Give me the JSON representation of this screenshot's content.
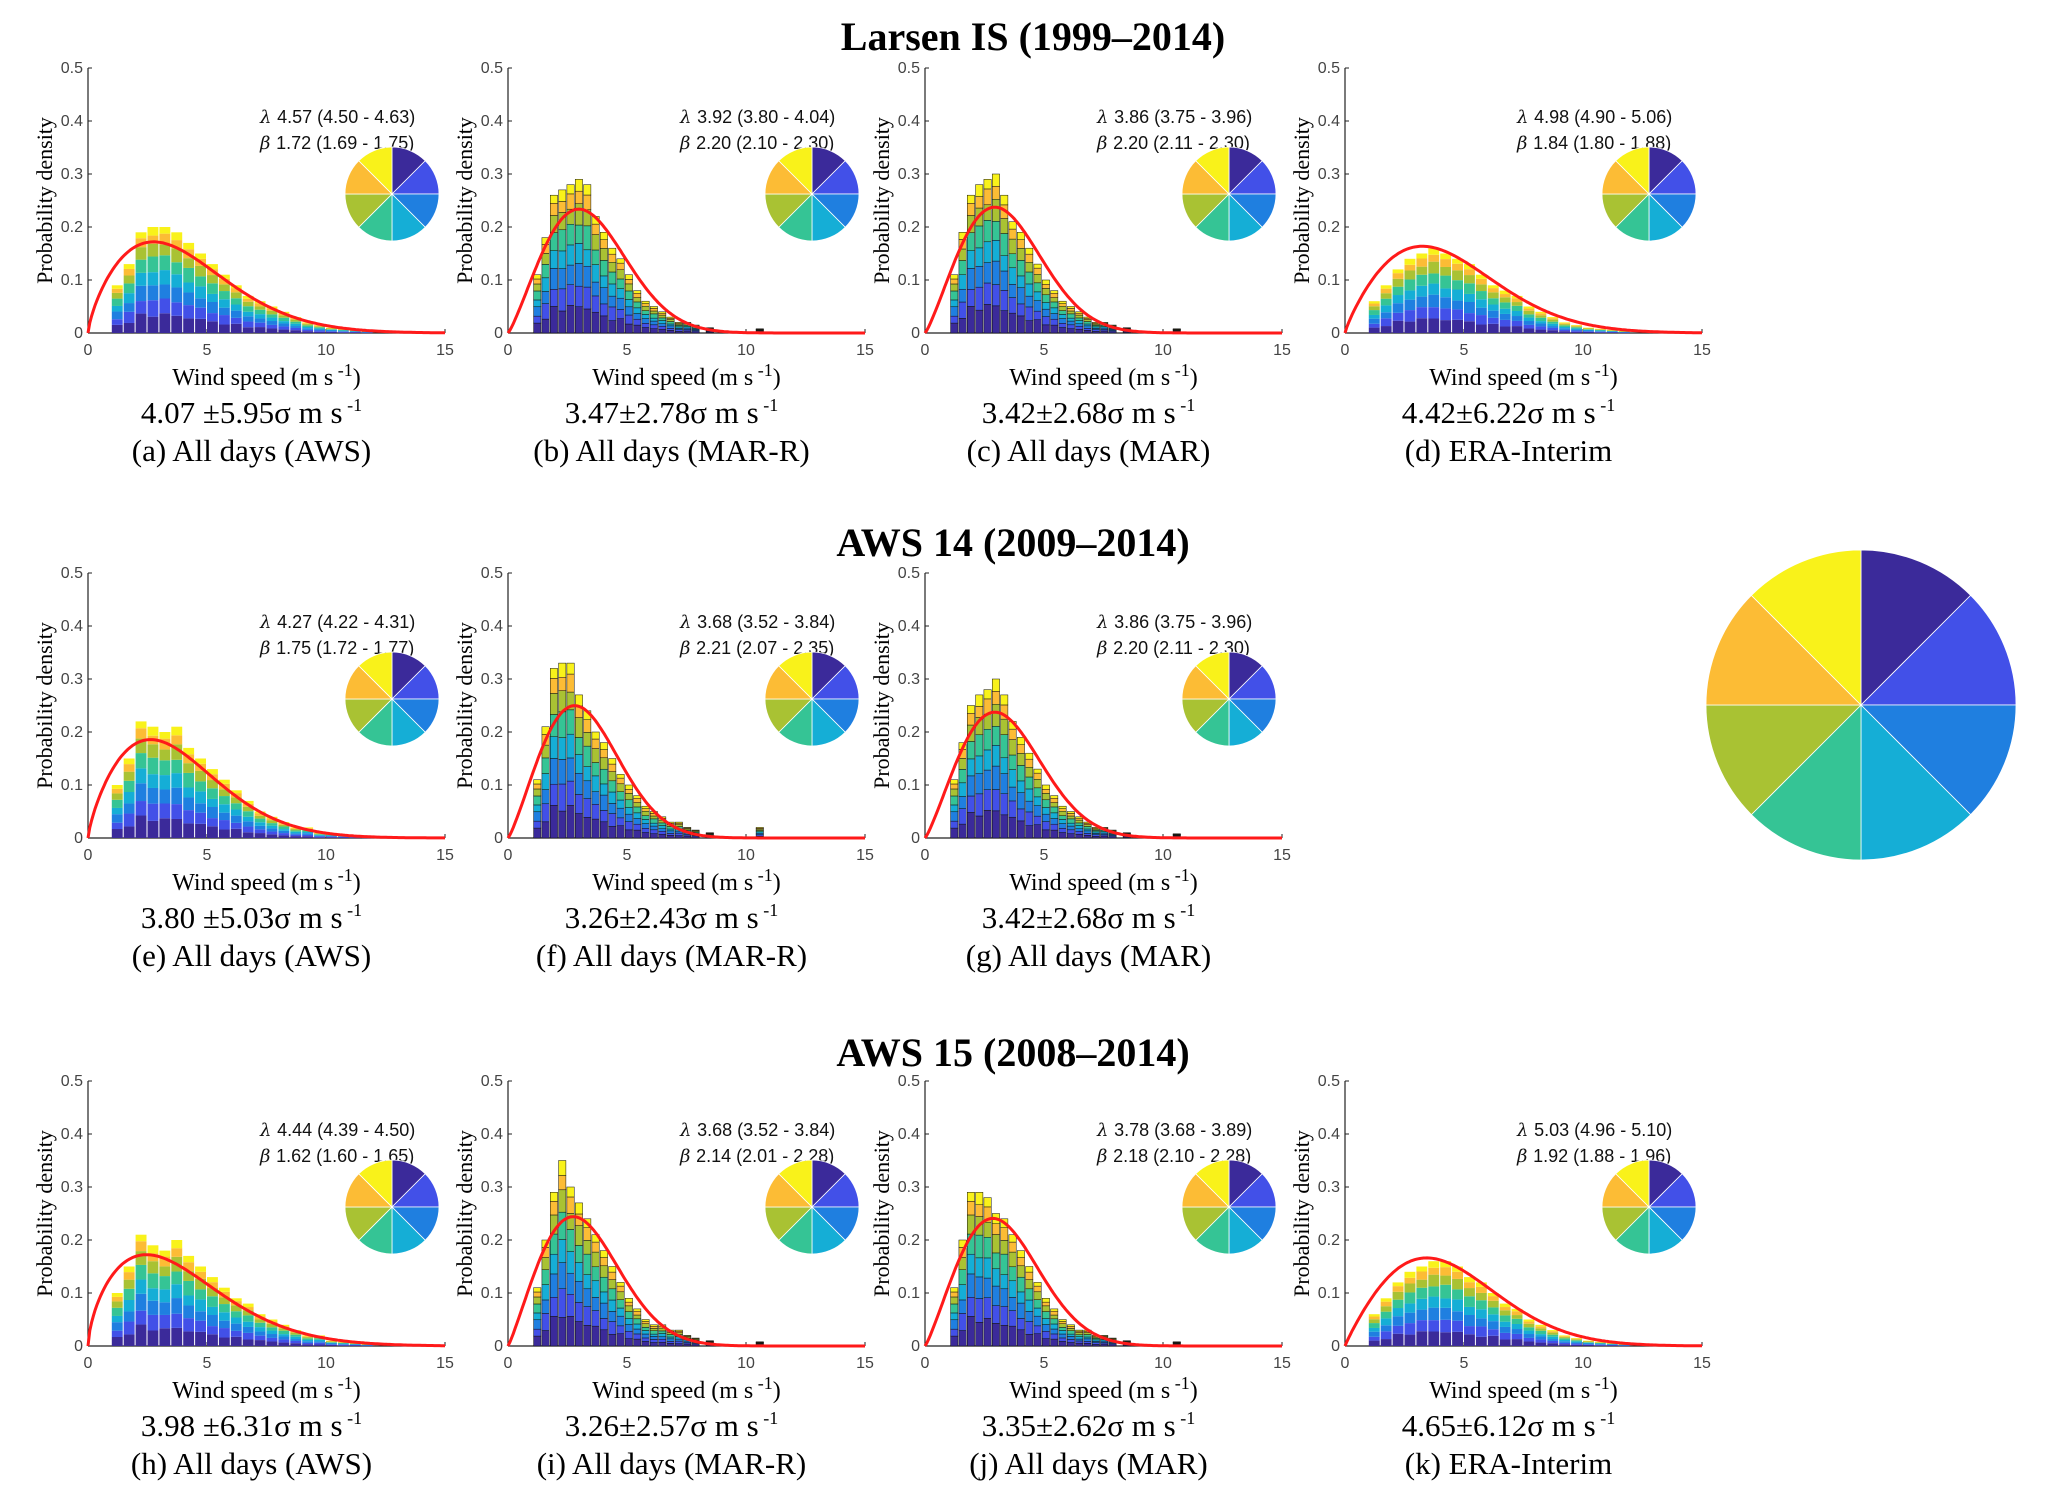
{
  "figure": {
    "section_titles": [
      "Larsen IS (1999–2014)",
      "AWS 14 (2009–2014)",
      "AWS 15 (2008–2014)"
    ],
    "y_label": "Probability density",
    "x_label": "Wind speed (m s",
    "x_label_sup": "-1",
    "x_label_close": ")",
    "unit_text": "m s",
    "unit_sup": "-1",
    "lambda_symbol": "λ",
    "beta_symbol": "β",
    "sigma_symbol": "σ",
    "colors": {
      "fit_line": "#ff1a1a",
      "direction_palette": [
        "#3b2a9a",
        "#4250e8",
        "#1f7fe0",
        "#15aed6",
        "#35c495",
        "#a9c233",
        "#fcbc35",
        "#f9f21a"
      ]
    }
  },
  "chart_data": [
    {
      "id": "a",
      "type": "bar",
      "title": "(a) All days (AWS)",
      "stat_mean": "4.07",
      "stat_pm": " ±",
      "stat_sd": "5.95",
      "lambda": "4.57 (4.50 - 4.63)",
      "beta": "1.72 (1.69 - 1.75)",
      "xlim": [
        0,
        15
      ],
      "ylim": [
        0,
        0.5
      ],
      "x_ticks": [
        "0",
        "5",
        "10",
        "15"
      ],
      "y_ticks": [
        "0",
        "0.1",
        "0.2",
        "0.3",
        "0.4",
        "0.5"
      ],
      "bin_width": 0.5,
      "bin_centers": [
        1.25,
        1.75,
        2.25,
        2.75,
        3.25,
        3.75,
        4.25,
        4.75,
        5.25,
        5.75,
        6.25,
        6.75,
        7.25,
        7.75,
        8.25,
        8.75,
        9.25,
        9.75,
        10.25,
        10.75,
        11.25,
        11.75
      ],
      "values": [
        0.09,
        0.13,
        0.19,
        0.2,
        0.2,
        0.19,
        0.17,
        0.15,
        0.13,
        0.11,
        0.09,
        0.07,
        0.06,
        0.05,
        0.04,
        0.03,
        0.02,
        0.015,
        0.01,
        0.008,
        0.006,
        0.004
      ],
      "pie": [
        0.125,
        0.125,
        0.125,
        0.125,
        0.125,
        0.125,
        0.125,
        0.125
      ]
    },
    {
      "id": "b",
      "type": "bar",
      "title": "(b) All days (MAR-R)",
      "stat_mean": "3.47",
      "stat_pm": "±",
      "stat_sd": "2.78",
      "lambda": "3.92 (3.80 - 4.04)",
      "beta": "2.20 (2.10 - 2.30)",
      "xlim": [
        0,
        15
      ],
      "ylim": [
        0,
        0.5
      ],
      "x_ticks": [
        "0",
        "5",
        "10",
        "15"
      ],
      "y_ticks": [
        "0",
        "0.1",
        "0.2",
        "0.3",
        "0.4",
        "0.5"
      ],
      "bin_width": 0.35,
      "bin_centers": [
        1.25,
        1.6,
        1.95,
        2.3,
        2.65,
        3.0,
        3.35,
        3.7,
        4.05,
        4.4,
        4.75,
        5.1,
        5.45,
        5.8,
        6.15,
        6.5,
        6.85,
        7.2,
        7.55,
        7.9,
        8.5,
        10.6
      ],
      "values": [
        0.11,
        0.18,
        0.26,
        0.27,
        0.28,
        0.29,
        0.28,
        0.22,
        0.19,
        0.16,
        0.14,
        0.11,
        0.08,
        0.06,
        0.05,
        0.04,
        0.03,
        0.02,
        0.02,
        0.015,
        0.01,
        0.008
      ],
      "pie": [
        0.125,
        0.125,
        0.125,
        0.125,
        0.125,
        0.125,
        0.125,
        0.125
      ]
    },
    {
      "id": "c",
      "type": "bar",
      "title": "(c) All days (MAR)",
      "stat_mean": "3.42",
      "stat_pm": "±",
      "stat_sd": "2.68",
      "lambda": "3.86 (3.75 - 3.96)",
      "beta": "2.20 (2.11 - 2.30)",
      "xlim": [
        0,
        15
      ],
      "ylim": [
        0,
        0.5
      ],
      "x_ticks": [
        "0",
        "5",
        "10",
        "15"
      ],
      "y_ticks": [
        "0",
        "0.1",
        "0.2",
        "0.3",
        "0.4",
        "0.5"
      ],
      "bin_width": 0.35,
      "bin_centers": [
        1.25,
        1.6,
        1.95,
        2.3,
        2.65,
        3.0,
        3.35,
        3.7,
        4.05,
        4.4,
        4.75,
        5.1,
        5.45,
        5.8,
        6.15,
        6.5,
        6.85,
        7.2,
        7.55,
        7.9,
        8.5,
        10.6
      ],
      "values": [
        0.11,
        0.19,
        0.26,
        0.28,
        0.29,
        0.3,
        0.26,
        0.21,
        0.19,
        0.16,
        0.13,
        0.1,
        0.08,
        0.06,
        0.05,
        0.04,
        0.03,
        0.02,
        0.02,
        0.015,
        0.01,
        0.008
      ],
      "pie": [
        0.125,
        0.125,
        0.125,
        0.125,
        0.125,
        0.125,
        0.125,
        0.125
      ]
    },
    {
      "id": "d",
      "type": "bar",
      "title": "(d) ERA-Interim",
      "stat_mean": "4.42",
      "stat_pm": "±",
      "stat_sd": "6.22",
      "lambda": "4.98 (4.90 - 5.06)",
      "beta": "1.84 (1.80 - 1.88)",
      "xlim": [
        0,
        15
      ],
      "ylim": [
        0,
        0.5
      ],
      "x_ticks": [
        "0",
        "5",
        "10",
        "15"
      ],
      "y_ticks": [
        "0",
        "0.1",
        "0.2",
        "0.3",
        "0.4",
        "0.5"
      ],
      "bin_width": 0.5,
      "bin_centers": [
        1.25,
        1.75,
        2.25,
        2.75,
        3.25,
        3.75,
        4.25,
        4.75,
        5.25,
        5.75,
        6.25,
        6.75,
        7.25,
        7.75,
        8.25,
        8.75,
        9.25,
        9.75,
        10.25,
        10.75,
        11.25,
        11.75
      ],
      "values": [
        0.06,
        0.09,
        0.12,
        0.14,
        0.15,
        0.16,
        0.15,
        0.14,
        0.13,
        0.11,
        0.09,
        0.08,
        0.07,
        0.05,
        0.04,
        0.03,
        0.02,
        0.015,
        0.01,
        0.008,
        0.006,
        0.004
      ],
      "pie": [
        0.125,
        0.125,
        0.125,
        0.125,
        0.125,
        0.125,
        0.125,
        0.125
      ]
    },
    {
      "id": "e",
      "type": "bar",
      "title": "(e) All days (AWS)",
      "stat_mean": "3.80",
      "stat_pm": " ±",
      "stat_sd": "5.03",
      "lambda": "4.27 (4.22 - 4.31)",
      "beta": "1.75 (1.72 - 1.77)",
      "xlim": [
        0,
        15
      ],
      "ylim": [
        0,
        0.5
      ],
      "x_ticks": [
        "0",
        "5",
        "10",
        "15"
      ],
      "y_ticks": [
        "0",
        "0.1",
        "0.2",
        "0.3",
        "0.4",
        "0.5"
      ],
      "bin_width": 0.5,
      "bin_centers": [
        1.25,
        1.75,
        2.25,
        2.75,
        3.25,
        3.75,
        4.25,
        4.75,
        5.25,
        5.75,
        6.25,
        6.75,
        7.25,
        7.75,
        8.25,
        8.75,
        9.25,
        9.75,
        10.25,
        10.75,
        11.25,
        11.75
      ],
      "values": [
        0.1,
        0.15,
        0.22,
        0.21,
        0.2,
        0.21,
        0.17,
        0.15,
        0.13,
        0.11,
        0.09,
        0.07,
        0.05,
        0.04,
        0.03,
        0.02,
        0.02,
        0.01,
        0.008,
        0.006,
        0.004,
        0.003
      ],
      "pie": [
        0.125,
        0.125,
        0.125,
        0.125,
        0.125,
        0.125,
        0.125,
        0.125
      ]
    },
    {
      "id": "f",
      "type": "bar",
      "title": "(f) All days (MAR-R)",
      "stat_mean": "3.26",
      "stat_pm": "±",
      "stat_sd": "2.43",
      "lambda": "3.68 (3.52 - 3.84)",
      "beta": "2.21 (2.07 - 2.35)",
      "xlim": [
        0,
        15
      ],
      "ylim": [
        0,
        0.5
      ],
      "x_ticks": [
        "0",
        "5",
        "10",
        "15"
      ],
      "y_ticks": [
        "0",
        "0.1",
        "0.2",
        "0.3",
        "0.4",
        "0.5"
      ],
      "bin_width": 0.35,
      "bin_centers": [
        1.25,
        1.6,
        1.95,
        2.3,
        2.65,
        3.0,
        3.35,
        3.7,
        4.05,
        4.4,
        4.75,
        5.1,
        5.45,
        5.8,
        6.15,
        6.5,
        6.85,
        7.2,
        7.55,
        7.9,
        8.5,
        10.6
      ],
      "values": [
        0.11,
        0.21,
        0.32,
        0.33,
        0.33,
        0.27,
        0.24,
        0.2,
        0.18,
        0.15,
        0.12,
        0.1,
        0.08,
        0.06,
        0.05,
        0.04,
        0.03,
        0.03,
        0.02,
        0.015,
        0.01,
        0.02
      ],
      "pie": [
        0.125,
        0.125,
        0.125,
        0.125,
        0.125,
        0.125,
        0.125,
        0.125
      ]
    },
    {
      "id": "g",
      "type": "bar",
      "title": "(g) All days (MAR)",
      "stat_mean": "3.42",
      "stat_pm": "±",
      "stat_sd": "2.68",
      "lambda": "3.86 (3.75 - 3.96)",
      "beta": "2.20 (2.11 - 2.30)",
      "xlim": [
        0,
        15
      ],
      "ylim": [
        0,
        0.5
      ],
      "x_ticks": [
        "0",
        "5",
        "10",
        "15"
      ],
      "y_ticks": [
        "0",
        "0.1",
        "0.2",
        "0.3",
        "0.4",
        "0.5"
      ],
      "bin_width": 0.35,
      "bin_centers": [
        1.25,
        1.6,
        1.95,
        2.3,
        2.65,
        3.0,
        3.35,
        3.7,
        4.05,
        4.4,
        4.75,
        5.1,
        5.45,
        5.8,
        6.15,
        6.5,
        6.85,
        7.2,
        7.55,
        7.9,
        8.5,
        10.6
      ],
      "values": [
        0.11,
        0.18,
        0.25,
        0.27,
        0.28,
        0.3,
        0.27,
        0.22,
        0.19,
        0.16,
        0.13,
        0.1,
        0.08,
        0.06,
        0.05,
        0.04,
        0.03,
        0.02,
        0.02,
        0.015,
        0.01,
        0.008
      ],
      "pie": [
        0.125,
        0.125,
        0.125,
        0.125,
        0.125,
        0.125,
        0.125,
        0.125
      ]
    },
    {
      "id": "h",
      "type": "bar",
      "title": "(h) All days (AWS)",
      "stat_mean": "3.98",
      "stat_pm": " ±",
      "stat_sd": "6.31",
      "lambda": "4.44 (4.39 - 4.50)",
      "beta": "1.62 (1.60 - 1.65)",
      "xlim": [
        0,
        15
      ],
      "ylim": [
        0,
        0.5
      ],
      "x_ticks": [
        "0",
        "5",
        "10",
        "15"
      ],
      "y_ticks": [
        "0",
        "0.1",
        "0.2",
        "0.3",
        "0.4",
        "0.5"
      ],
      "bin_width": 0.5,
      "bin_centers": [
        1.25,
        1.75,
        2.25,
        2.75,
        3.25,
        3.75,
        4.25,
        4.75,
        5.25,
        5.75,
        6.25,
        6.75,
        7.25,
        7.75,
        8.25,
        8.75,
        9.25,
        9.75,
        10.25,
        10.75,
        11.25,
        11.75
      ],
      "values": [
        0.1,
        0.15,
        0.21,
        0.19,
        0.18,
        0.2,
        0.17,
        0.15,
        0.13,
        0.11,
        0.09,
        0.08,
        0.06,
        0.05,
        0.04,
        0.03,
        0.02,
        0.02,
        0.01,
        0.008,
        0.006,
        0.004
      ],
      "pie": [
        0.125,
        0.125,
        0.125,
        0.125,
        0.125,
        0.125,
        0.125,
        0.125
      ]
    },
    {
      "id": "i",
      "type": "bar",
      "title": "(i) All days (MAR-R)",
      "stat_mean": "3.26",
      "stat_pm": "±",
      "stat_sd": "2.57",
      "lambda": "3.68 (3.52 - 3.84)",
      "beta": "2.14 (2.01 - 2.28)",
      "xlim": [
        0,
        15
      ],
      "ylim": [
        0,
        0.5
      ],
      "x_ticks": [
        "0",
        "5",
        "10",
        "15"
      ],
      "y_ticks": [
        "0",
        "0.1",
        "0.2",
        "0.3",
        "0.4",
        "0.5"
      ],
      "bin_width": 0.35,
      "bin_centers": [
        1.25,
        1.6,
        1.95,
        2.3,
        2.65,
        3.0,
        3.35,
        3.7,
        4.05,
        4.4,
        4.75,
        5.1,
        5.45,
        5.8,
        6.15,
        6.5,
        6.85,
        7.2,
        7.55,
        7.9,
        8.5,
        10.6
      ],
      "values": [
        0.11,
        0.2,
        0.29,
        0.35,
        0.3,
        0.27,
        0.24,
        0.21,
        0.18,
        0.15,
        0.12,
        0.09,
        0.07,
        0.05,
        0.04,
        0.04,
        0.03,
        0.03,
        0.02,
        0.015,
        0.01,
        0.008
      ],
      "pie": [
        0.125,
        0.125,
        0.125,
        0.125,
        0.125,
        0.125,
        0.125,
        0.125
      ]
    },
    {
      "id": "j",
      "type": "bar",
      "title": "(j) All days (MAR)",
      "stat_mean": "3.35",
      "stat_pm": "±",
      "stat_sd": "2.62",
      "lambda": "3.78 (3.68 - 3.89)",
      "beta": "2.18 (2.10 - 2.28)",
      "xlim": [
        0,
        15
      ],
      "ylim": [
        0,
        0.5
      ],
      "x_ticks": [
        "0",
        "5",
        "10",
        "15"
      ],
      "y_ticks": [
        "0",
        "0.1",
        "0.2",
        "0.3",
        "0.4",
        "0.5"
      ],
      "bin_width": 0.35,
      "bin_centers": [
        1.25,
        1.6,
        1.95,
        2.3,
        2.65,
        3.0,
        3.35,
        3.7,
        4.05,
        4.4,
        4.75,
        5.1,
        5.45,
        5.8,
        6.15,
        6.5,
        6.85,
        7.2,
        7.55,
        7.9,
        8.5,
        10.6
      ],
      "values": [
        0.11,
        0.2,
        0.29,
        0.29,
        0.28,
        0.25,
        0.24,
        0.21,
        0.18,
        0.15,
        0.12,
        0.09,
        0.07,
        0.05,
        0.04,
        0.03,
        0.03,
        0.02,
        0.02,
        0.015,
        0.01,
        0.008
      ],
      "pie": [
        0.125,
        0.125,
        0.125,
        0.125,
        0.125,
        0.125,
        0.125,
        0.125
      ]
    },
    {
      "id": "k",
      "type": "bar",
      "title": "(k) ERA-Interim",
      "stat_mean": "4.65",
      "stat_pm": "±",
      "stat_sd": "6.12",
      "lambda": "5.03 (4.96 - 5.10)",
      "beta": "1.92 (1.88 - 1.96)",
      "xlim": [
        0,
        15
      ],
      "ylim": [
        0,
        0.5
      ],
      "x_ticks": [
        "0",
        "5",
        "10",
        "15"
      ],
      "y_ticks": [
        "0",
        "0.1",
        "0.2",
        "0.3",
        "0.4",
        "0.5"
      ],
      "bin_width": 0.5,
      "bin_centers": [
        1.25,
        1.75,
        2.25,
        2.75,
        3.25,
        3.75,
        4.25,
        4.75,
        5.25,
        5.75,
        6.25,
        6.75,
        7.25,
        7.75,
        8.25,
        8.75,
        9.25,
        9.75,
        10.25,
        10.75,
        11.25,
        11.75
      ],
      "values": [
        0.06,
        0.09,
        0.12,
        0.14,
        0.15,
        0.16,
        0.16,
        0.15,
        0.13,
        0.12,
        0.1,
        0.08,
        0.07,
        0.05,
        0.04,
        0.03,
        0.02,
        0.015,
        0.01,
        0.008,
        0.006,
        0.004
      ],
      "pie": [
        0.125,
        0.125,
        0.125,
        0.125,
        0.125,
        0.125,
        0.125,
        0.125
      ]
    }
  ],
  "legend_pie": {
    "type": "pie",
    "slices": [
      0.125,
      0.125,
      0.125,
      0.125,
      0.125,
      0.125,
      0.125,
      0.125
    ]
  }
}
